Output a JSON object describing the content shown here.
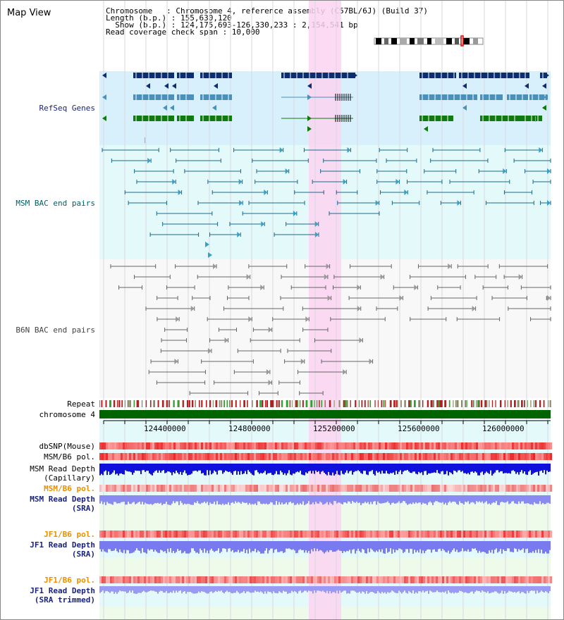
{
  "page_title": "Map View",
  "info": {
    "line1": "Chromosome   : Chromosome 4, reference assembly (C57BL/6J) (Build 37)",
    "line2": "Length (b.p.) : 155,630,120",
    "line3": "  Show (b.p.) : 124,175,693-126,330,233 : 2,154,541 bp",
    "line4": "Read coverage check span : 10,000"
  },
  "tracks": {
    "refseq": "RefSeq Genes",
    "msm_bac": "MSM BAC end pairs",
    "b6n_bac": "B6N BAC end pairs",
    "repeat": "Repeat",
    "chromosome": "chromosome 4",
    "dbsnp": "dbSNP(Mouse)",
    "msm_b6_pol_1": "MSM/B6 pol.",
    "msm_read_depth_cap_1": "MSM Read Depth",
    "msm_read_depth_cap_2": "(Capillary)",
    "msm_b6_pol_2": "MSM/B6 pol.",
    "msm_read_depth_sra_1": "MSM Read Depth",
    "msm_read_depth_sra_2": "(SRA)",
    "jf1_b6_pol_1": "JF1/B6 pol.",
    "jf1_read_depth_sra_1": "JF1 Read Depth",
    "jf1_read_depth_sra_2": "(SRA)",
    "jf1_b6_pol_2": "JF1/B6 pol.",
    "jf1_read_depth_trim_1": "JF1 Read Depth",
    "jf1_read_depth_trim_2": "(SRA trimmed)"
  },
  "axis": {
    "ticks": [
      "124400000",
      "124800000",
      "125200000",
      "125600000",
      "126000000"
    ]
  },
  "colors": {
    "dark_blue": "#1a237e",
    "teal": "#006064",
    "orange": "#e89000",
    "highlight": "#ffd6f2",
    "gene_dark": "#0d2d6e",
    "gene_mid": "#4a90b8",
    "gene_green": "#107a10"
  }
}
